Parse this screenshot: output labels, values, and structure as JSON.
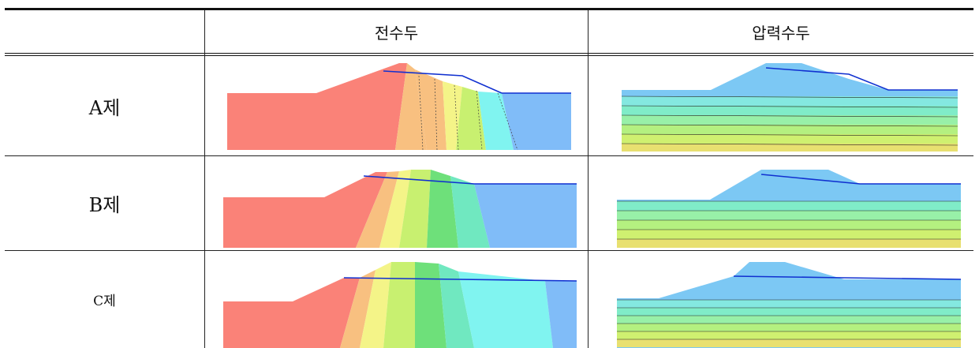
{
  "table": {
    "headers": {
      "corner": "",
      "col_total_head": "전수두",
      "col_pressure_head": "압력수두"
    },
    "rows": [
      {
        "label": "A제",
        "total_head_figure": "red-to-blue total head contour section",
        "pressure_head_figure": "blue-to-green pressure head contour section"
      },
      {
        "label": "B제",
        "total_head_figure": "red-to-blue total head contour section",
        "pressure_head_figure": "blue-to-green pressure head contour section"
      },
      {
        "label": "C제",
        "total_head_figure": "red-to-blue total head contour section",
        "pressure_head_figure": "blue-to-green pressure head contour section"
      }
    ]
  },
  "colors": {
    "total_head_bands": [
      "#fa8278",
      "#f8c080",
      "#f4f488",
      "#c8f070",
      "#6ee07a",
      "#70e8c0",
      "#80f4f0",
      "#80bcf8"
    ],
    "pressure_head_bands": [
      "#7cc8f4",
      "#84e8e0",
      "#80ecc8",
      "#98f0a8",
      "#b4f080",
      "#cff070",
      "#e8e070"
    ],
    "phreatic_line": "#1030d0"
  }
}
